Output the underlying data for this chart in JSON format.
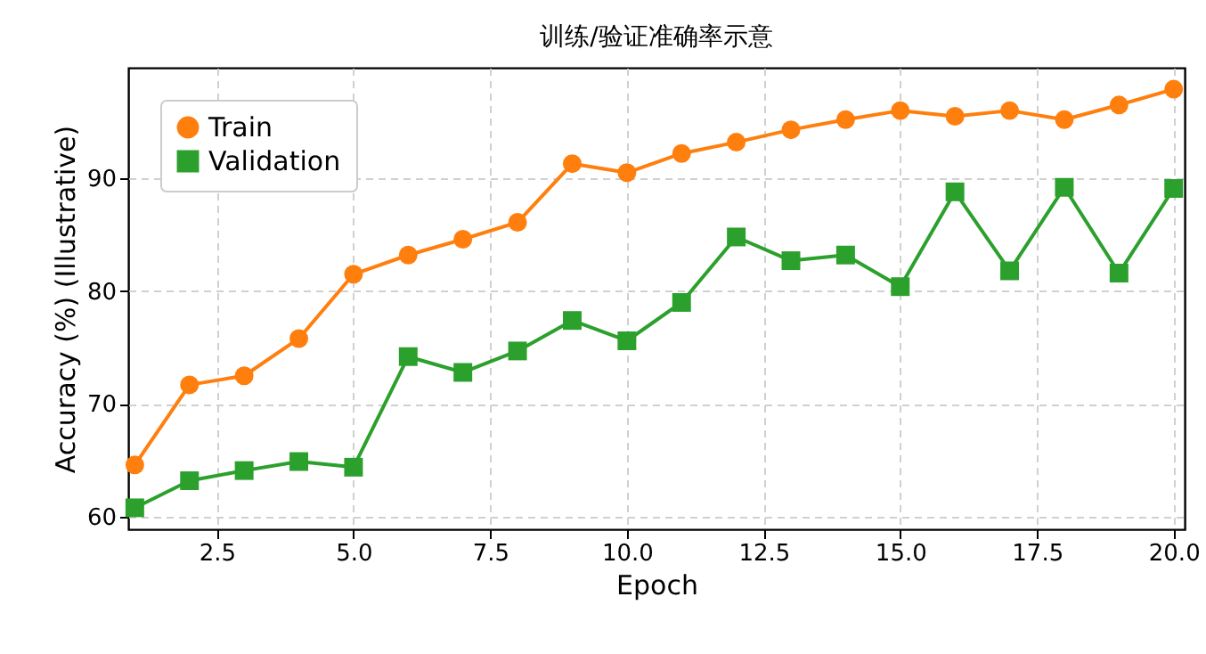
{
  "chart_data": {
    "type": "line",
    "title": "训练/验证准确率示意",
    "xlabel": "Epoch",
    "ylabel": "Accuracy (%) (Illustrative)",
    "x": [
      1,
      2,
      3,
      4,
      5,
      6,
      7,
      8,
      9,
      10,
      11,
      12,
      13,
      14,
      15,
      16,
      17,
      18,
      19,
      20
    ],
    "series": [
      {
        "name": "Train",
        "color": "#ff7f0e",
        "marker": "circle",
        "values": [
          64.6,
          71.7,
          72.5,
          75.8,
          81.5,
          83.2,
          84.6,
          86.1,
          91.3,
          90.5,
          92.2,
          93.2,
          94.3,
          95.2,
          96.0,
          95.5,
          96.0,
          95.2,
          96.5,
          97.9
        ]
      },
      {
        "name": "Validation",
        "color": "#2ca02c",
        "marker": "square",
        "values": [
          60.8,
          63.2,
          64.1,
          64.9,
          64.4,
          74.2,
          72.8,
          74.7,
          77.4,
          75.6,
          79.0,
          84.8,
          82.7,
          83.2,
          80.4,
          88.8,
          81.8,
          89.2,
          81.6,
          89.1
        ]
      }
    ],
    "xlim": [
      0.88,
      20.2
    ],
    "ylim": [
      58.9,
      99.8
    ],
    "xticks": [
      2.5,
      {
        "value": 5,
        "label": "5.0"
      },
      7.5,
      {
        "value": 10,
        "label": "10.0"
      },
      12.5,
      {
        "value": 15,
        "label": "15.0"
      },
      17.5,
      {
        "value": 20,
        "label": "20.0"
      }
    ],
    "yticks": [
      60,
      70,
      80,
      90
    ],
    "grid": true,
    "legend": "top left",
    "line_style": "solid"
  }
}
